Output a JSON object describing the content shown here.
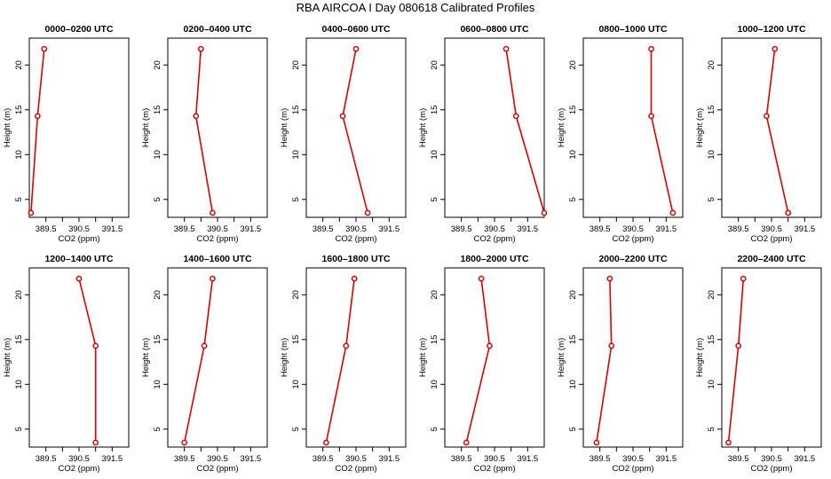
{
  "title": "RBA AIRCOA I  Day 080618  Calibrated Profiles",
  "colors": {
    "line": "#e00000",
    "axis": "#000000",
    "background": "#ffffff"
  },
  "chart_data": {
    "type": "line",
    "xlabel": "CO2 (ppm)",
    "ylabel": "Height (m)",
    "xlim": [
      389.0,
      392.0
    ],
    "ylim": [
      3,
      23
    ],
    "x_ticks": [
      389.5,
      390.5,
      391.5
    ],
    "x_tick_labels": [
      "389.5",
      "390.5",
      "391.5"
    ],
    "y_ticks": [
      5,
      10,
      15,
      20
    ],
    "y_tick_labels": [
      "5",
      "10",
      "15",
      "20"
    ],
    "grid": false,
    "heights": [
      3.5,
      14.3,
      21.8
    ],
    "panels": [
      {
        "title": "0000–0200 UTC",
        "co2": [
          389.05,
          389.25,
          389.45
        ]
      },
      {
        "title": "0200–0400 UTC",
        "co2": [
          390.35,
          389.85,
          390.0
        ]
      },
      {
        "title": "0400–0600 UTC",
        "co2": [
          390.85,
          390.1,
          390.5
        ]
      },
      {
        "title": "0600–0800 UTC",
        "co2": [
          392.0,
          391.15,
          390.85
        ]
      },
      {
        "title": "0800–1000 UTC",
        "co2": [
          391.7,
          391.05,
          391.05
        ]
      },
      {
        "title": "1000–1200 UTC",
        "co2": [
          391.0,
          390.35,
          390.6
        ]
      },
      {
        "title": "1200–1400 UTC",
        "co2": [
          391.0,
          391.0,
          390.5
        ]
      },
      {
        "title": "1400–1600 UTC",
        "co2": [
          389.5,
          390.1,
          390.35
        ]
      },
      {
        "title": "1600–1800 UTC",
        "co2": [
          389.6,
          390.2,
          390.45
        ]
      },
      {
        "title": "1800–2000 UTC",
        "co2": [
          389.65,
          390.35,
          390.1
        ]
      },
      {
        "title": "2000–2200 UTC",
        "co2": [
          389.4,
          389.85,
          389.8
        ]
      },
      {
        "title": "2200–2400 UTC",
        "co2": [
          389.2,
          389.5,
          389.65
        ]
      }
    ]
  }
}
